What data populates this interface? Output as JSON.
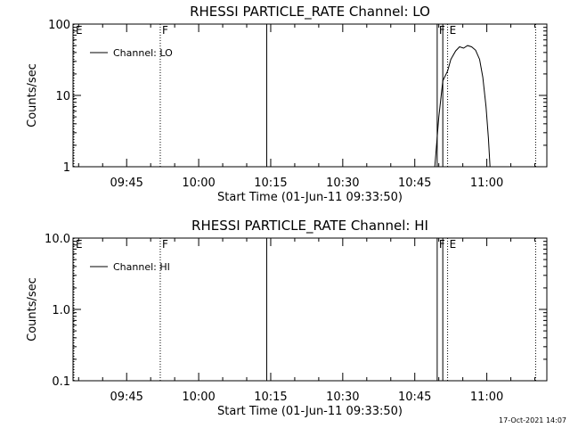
{
  "timestamp": "17-Oct-2021 14:07",
  "chart_data": [
    {
      "type": "line",
      "title": "RHESSI PARTICLE_RATE Channel: LO",
      "xlabel": "Start Time (01-Jun-11 09:33:50)",
      "ylabel": "Counts/sec",
      "yscale": "log",
      "ylim": [
        1,
        100
      ],
      "yticks": [
        1,
        10,
        100
      ],
      "ytick_labels": [
        "1",
        "10",
        "100"
      ],
      "xlim": [
        "09:33:50",
        "11:12:30"
      ],
      "xticks": [
        "09:45",
        "10:00",
        "10:15",
        "10:30",
        "10:45",
        "11:00"
      ],
      "legend": {
        "label": "Channel: LO",
        "placement": "top-left"
      },
      "markers": [
        {
          "time": "09:33:50",
          "label": "E",
          "style": "dotted"
        },
        {
          "time": "09:52:00",
          "label": "F",
          "style": "dotted"
        },
        {
          "time": "10:14:10",
          "label": "",
          "style": "solid"
        },
        {
          "time": "10:49:40",
          "label": "F",
          "style": "solid"
        },
        {
          "time": "10:50:50",
          "label": "",
          "style": "solid"
        },
        {
          "time": "10:51:50",
          "label": "E",
          "style": "dotted"
        },
        {
          "time": "11:10:10",
          "label": "",
          "style": "dotted"
        }
      ],
      "series": [
        {
          "name": "Channel: LO",
          "x": [
            "10:49:10",
            "10:50:00",
            "10:50:50",
            "10:51:50",
            "10:52:30",
            "10:53:30",
            "10:54:20",
            "10:55:10",
            "10:56:00",
            "10:56:50",
            "10:57:40",
            "10:58:30",
            "10:59:10",
            "10:59:50",
            "11:00:20",
            "11:00:40"
          ],
          "y": [
            1,
            5,
            16,
            22,
            32,
            42,
            48,
            46,
            50,
            48,
            43,
            32,
            18,
            7,
            2.5,
            1
          ]
        }
      ]
    },
    {
      "type": "line",
      "title": "RHESSI PARTICLE_RATE Channel: HI",
      "xlabel": "Start Time (01-Jun-11 09:33:50)",
      "ylabel": "Counts/sec",
      "yscale": "log",
      "ylim": [
        0.1,
        10
      ],
      "yticks": [
        0.1,
        1,
        10
      ],
      "ytick_labels": [
        "0.1",
        "1.0",
        "10.0"
      ],
      "xlim": [
        "09:33:50",
        "11:12:30"
      ],
      "xticks": [
        "09:45",
        "10:00",
        "10:15",
        "10:30",
        "10:45",
        "11:00"
      ],
      "legend": {
        "label": "Channel: HI",
        "placement": "top-left"
      },
      "markers": [
        {
          "time": "09:33:50",
          "label": "E",
          "style": "dotted"
        },
        {
          "time": "09:52:00",
          "label": "F",
          "style": "dotted"
        },
        {
          "time": "10:14:10",
          "label": "",
          "style": "solid"
        },
        {
          "time": "10:49:40",
          "label": "F",
          "style": "solid"
        },
        {
          "time": "10:50:50",
          "label": "",
          "style": "solid"
        },
        {
          "time": "10:51:50",
          "label": "E",
          "style": "dotted"
        },
        {
          "time": "11:10:10",
          "label": "",
          "style": "dotted"
        }
      ],
      "series": [
        {
          "name": "Channel: HI",
          "x": [],
          "y": []
        }
      ]
    }
  ]
}
